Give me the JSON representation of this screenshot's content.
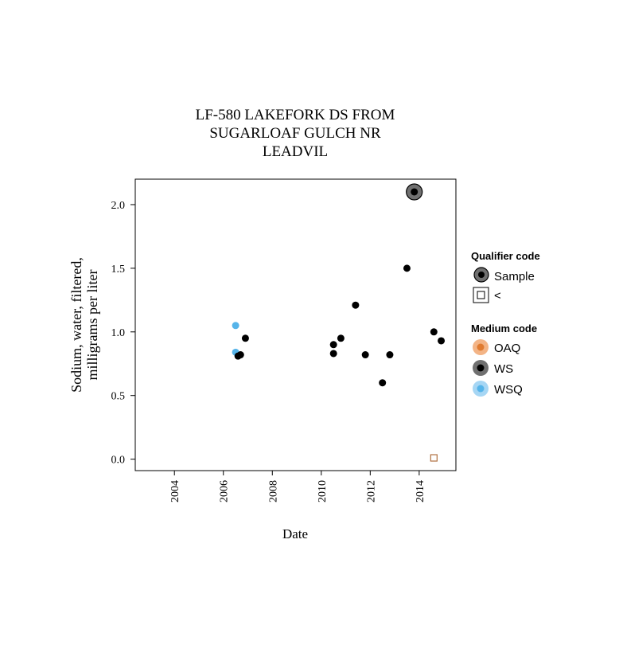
{
  "chart_data": {
    "type": "scatter",
    "title_lines": [
      "LF-580 LAKEFORK DS FROM",
      "SUGARLOAF GULCH NR",
      "LEADVIL"
    ],
    "xlabel": "Date",
    "ylabel_lines": [
      "Sodium, water, filtered,",
      "milligrams per liter"
    ],
    "xlim": [
      2002.4,
      2015.5
    ],
    "ylim": [
      -0.09,
      2.2
    ],
    "x_ticks": [
      2004,
      2006,
      2008,
      2010,
      2012,
      2014
    ],
    "x_tick_labels": [
      "2004",
      "2006",
      "2008",
      "2010",
      "2012",
      "2014"
    ],
    "y_ticks": [
      0.0,
      0.5,
      1.0,
      1.5,
      2.0
    ],
    "y_tick_labels": [
      "0.0",
      "0.5",
      "1.0",
      "1.5",
      "2.0"
    ],
    "grid": false,
    "legend_position": "right",
    "colors": {
      "WS": "#000000",
      "WSQ": "#56b4e9",
      "OAQ": "#e07b30",
      "outline": "#b07040"
    },
    "points": [
      {
        "x": 2006.5,
        "y": 1.05,
        "medium": "WSQ",
        "qualifier": "Sample"
      },
      {
        "x": 2006.5,
        "y": 0.84,
        "medium": "WSQ",
        "qualifier": "Sample"
      },
      {
        "x": 2006.6,
        "y": 0.81,
        "medium": "WS",
        "qualifier": "Sample"
      },
      {
        "x": 2006.7,
        "y": 0.82,
        "medium": "WS",
        "qualifier": "Sample"
      },
      {
        "x": 2006.9,
        "y": 0.95,
        "medium": "WS",
        "qualifier": "Sample"
      },
      {
        "x": 2010.5,
        "y": 0.83,
        "medium": "WS",
        "qualifier": "Sample"
      },
      {
        "x": 2010.5,
        "y": 0.9,
        "medium": "WS",
        "qualifier": "Sample"
      },
      {
        "x": 2010.8,
        "y": 0.95,
        "medium": "WS",
        "qualifier": "Sample"
      },
      {
        "x": 2011.4,
        "y": 1.21,
        "medium": "WS",
        "qualifier": "Sample"
      },
      {
        "x": 2011.8,
        "y": 0.82,
        "medium": "WS",
        "qualifier": "Sample"
      },
      {
        "x": 2012.5,
        "y": 0.6,
        "medium": "WS",
        "qualifier": "Sample"
      },
      {
        "x": 2012.8,
        "y": 0.82,
        "medium": "WS",
        "qualifier": "Sample"
      },
      {
        "x": 2013.5,
        "y": 1.5,
        "medium": "WS",
        "qualifier": "Sample"
      },
      {
        "x": 2013.8,
        "y": 2.1,
        "medium": "WS",
        "qualifier": "Sample",
        "highlight": true
      },
      {
        "x": 2014.6,
        "y": 1.0,
        "medium": "WS",
        "qualifier": "Sample"
      },
      {
        "x": 2014.6,
        "y": 0.01,
        "medium": "OAQ",
        "qualifier": "<"
      },
      {
        "x": 2014.9,
        "y": 0.93,
        "medium": "WS",
        "qualifier": "Sample"
      }
    ]
  },
  "legend": {
    "qualifier_title": "Qualifier code",
    "qualifier_items": [
      {
        "label": "Sample",
        "symbol": "circle-dark"
      },
      {
        "label": "<",
        "symbol": "open-square"
      }
    ],
    "medium_title": "Medium code",
    "medium_items": [
      {
        "label": "OAQ",
        "color": "#e07b30"
      },
      {
        "label": "WS",
        "color": "#000000"
      },
      {
        "label": "WSQ",
        "color": "#56b4e9"
      }
    ]
  }
}
